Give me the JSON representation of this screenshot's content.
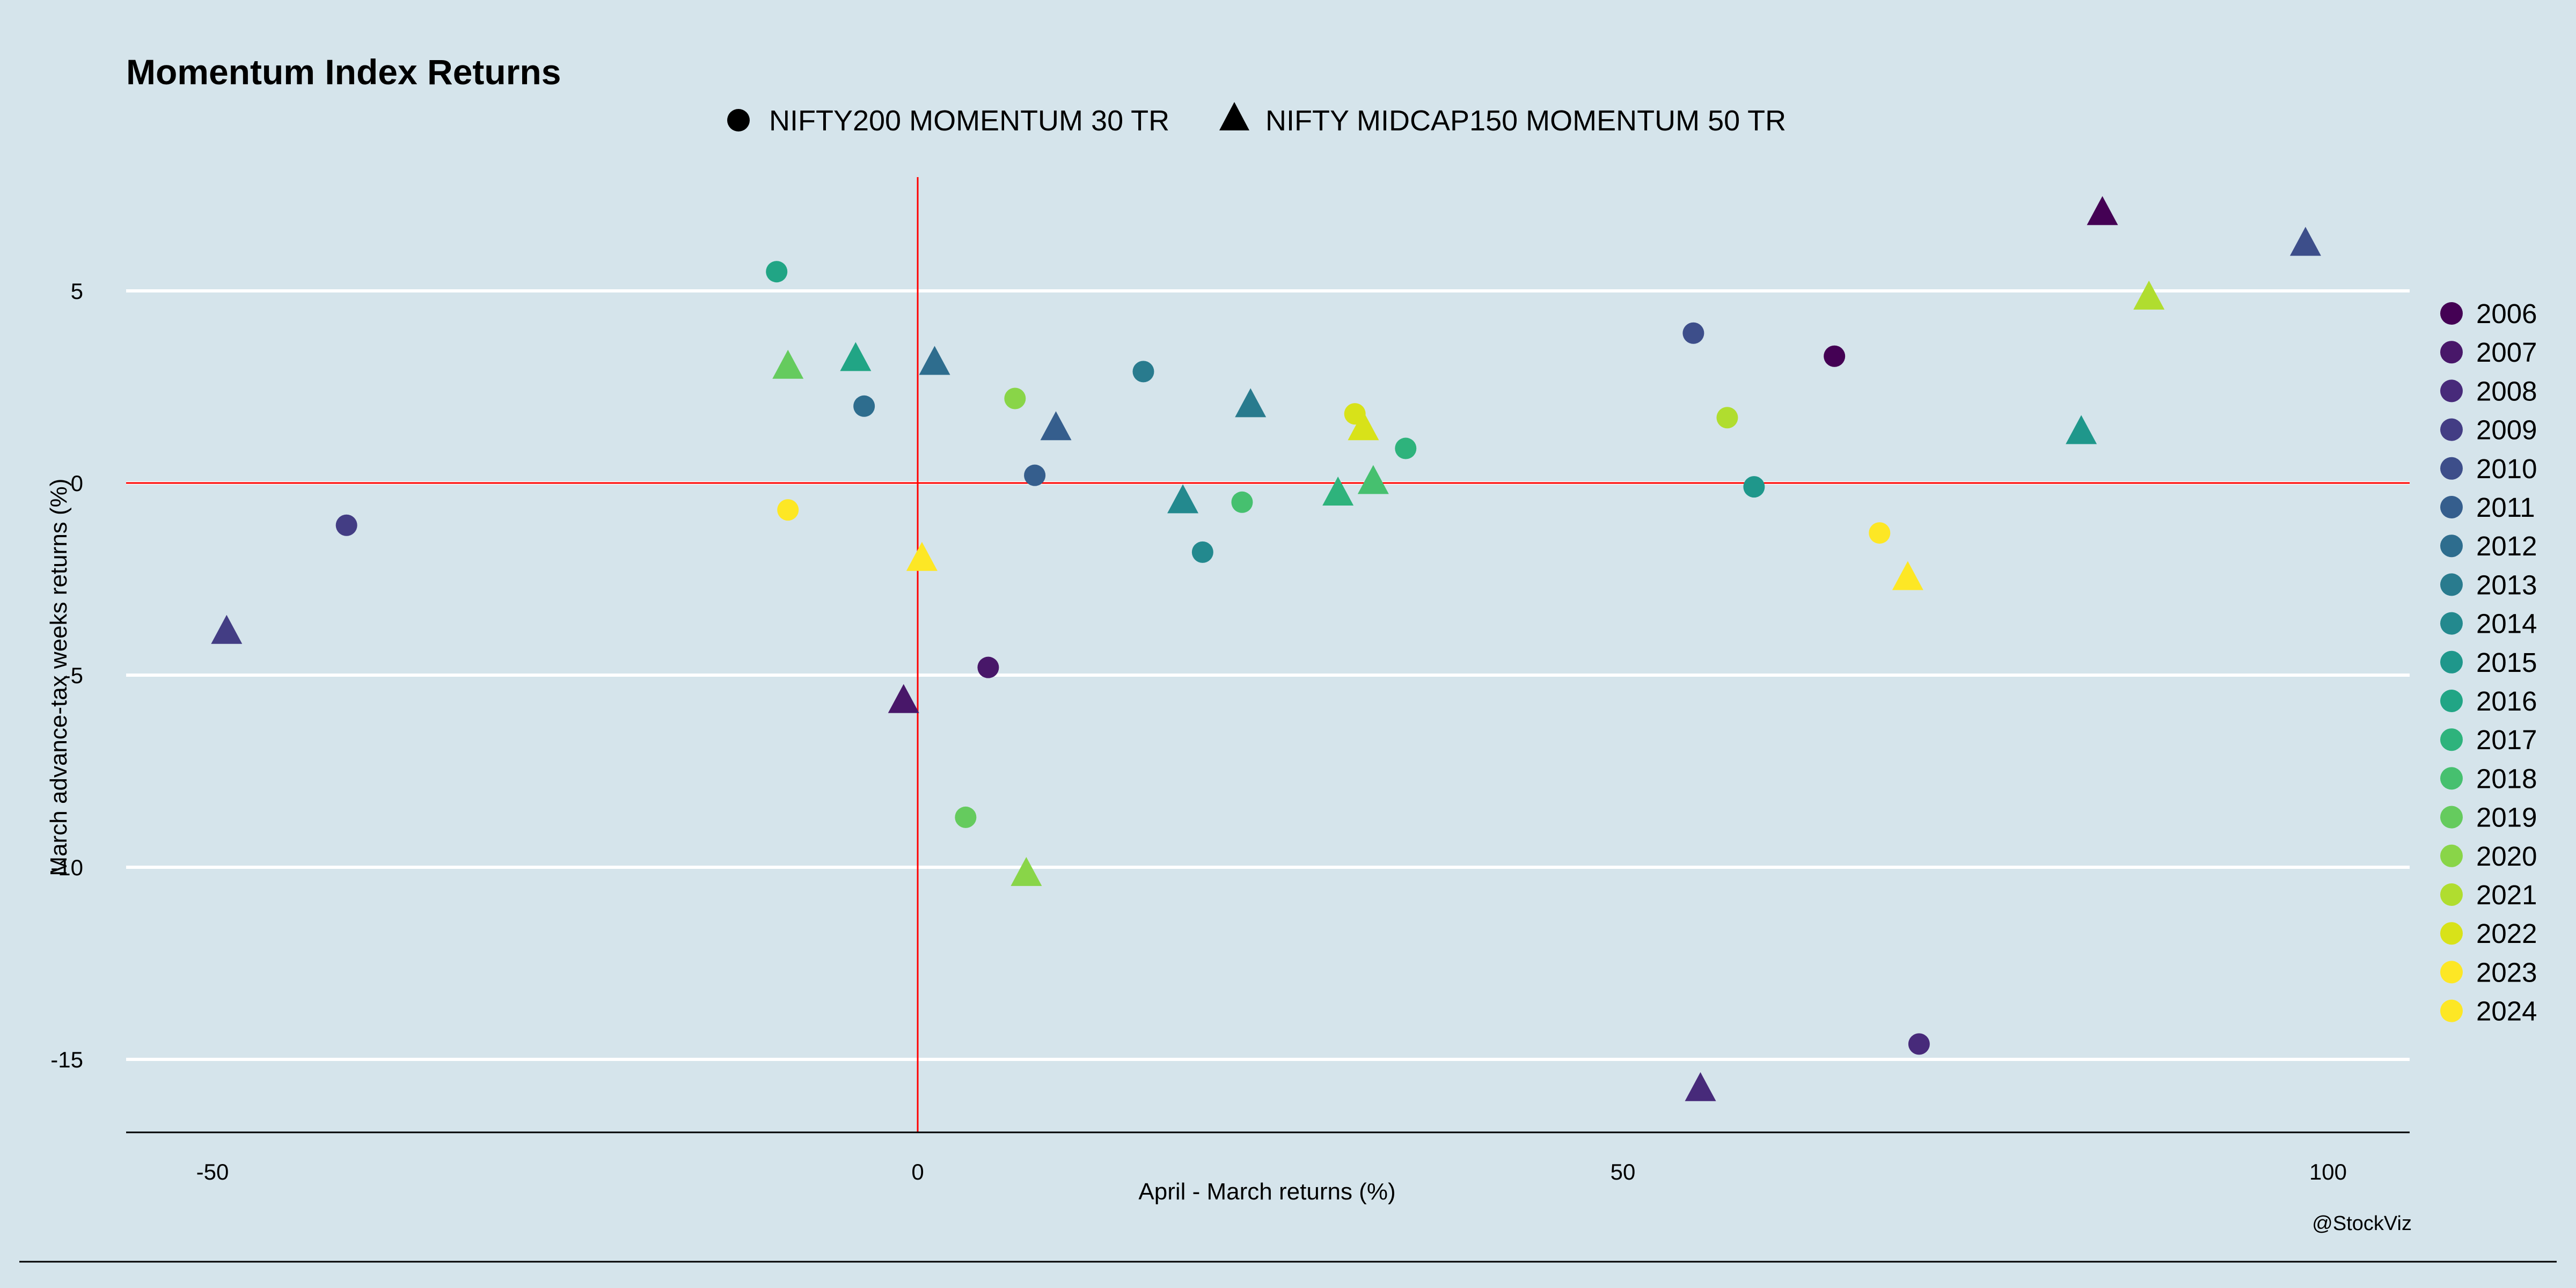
{
  "chart_data": {
    "type": "scatter",
    "title": "Momentum Index Returns",
    "xlabel": "April - March returns (%)",
    "ylabel": "March advance-tax weeks returns (%)",
    "xlim": [
      -56,
      106
    ],
    "ylim": [
      -17,
      8
    ],
    "xticks": [
      -50,
      0,
      50,
      100
    ],
    "yticks": [
      -15,
      -10,
      -5,
      0,
      5
    ],
    "grid": "horizontal",
    "reference_lines": {
      "x": 0,
      "y": 0,
      "color": "#ff0000"
    },
    "shape_legend_position": "top",
    "color_legend_position": "right",
    "caption": "@StockViz",
    "shape_series": [
      {
        "name": "NIFTY200 MOMENTUM 30 TR",
        "shape": "circle"
      },
      {
        "name": "NIFTY MIDCAP150 MOMENTUM 50 TR",
        "shape": "triangle"
      }
    ],
    "years": [
      {
        "year": "2006",
        "color": "#440154"
      },
      {
        "year": "2007",
        "color": "#481769"
      },
      {
        "year": "2008",
        "color": "#472a7a"
      },
      {
        "year": "2009",
        "color": "#433d84"
      },
      {
        "year": "2010",
        "color": "#3d4e8a"
      },
      {
        "year": "2011",
        "color": "#355e8d"
      },
      {
        "year": "2012",
        "color": "#2e6d8e"
      },
      {
        "year": "2013",
        "color": "#297b8e"
      },
      {
        "year": "2014",
        "color": "#23898e"
      },
      {
        "year": "2015",
        "color": "#1f978b"
      },
      {
        "year": "2016",
        "color": "#21a585"
      },
      {
        "year": "2017",
        "color": "#2eb37c"
      },
      {
        "year": "2018",
        "color": "#46c06f"
      },
      {
        "year": "2019",
        "color": "#65cb5e"
      },
      {
        "year": "2020",
        "color": "#89d548"
      },
      {
        "year": "2021",
        "color": "#b0dd2f"
      },
      {
        "year": "2022",
        "color": "#d8e219"
      },
      {
        "year": "2023",
        "color": "#fde725"
      },
      {
        "year": "2024",
        "color": "#fde725"
      }
    ],
    "points": [
      {
        "series": "NIFTY200 MOMENTUM 30 TR",
        "year": "2006",
        "x": 65,
        "y": 3.3
      },
      {
        "series": "NIFTY200 MOMENTUM 30 TR",
        "year": "2007",
        "x": 5,
        "y": -4.8
      },
      {
        "series": "NIFTY200 MOMENTUM 30 TR",
        "year": "2008",
        "x": 71,
        "y": -14.6
      },
      {
        "series": "NIFTY200 MOMENTUM 30 TR",
        "year": "2009",
        "x": -40.5,
        "y": -1.1
      },
      {
        "series": "NIFTY200 MOMENTUM 30 TR",
        "year": "2010",
        "x": 55,
        "y": 3.9
      },
      {
        "series": "NIFTY200 MOMENTUM 30 TR",
        "year": "2011",
        "x": 8.3,
        "y": 0.2
      },
      {
        "series": "NIFTY200 MOMENTUM 30 TR",
        "year": "2012",
        "x": -3.8,
        "y": 2.0
      },
      {
        "series": "NIFTY200 MOMENTUM 30 TR",
        "year": "2013",
        "x": 16,
        "y": 2.9
      },
      {
        "series": "NIFTY200 MOMENTUM 30 TR",
        "year": "2014",
        "x": 20.2,
        "y": -1.8
      },
      {
        "series": "NIFTY200 MOMENTUM 30 TR",
        "year": "2015",
        "x": 59.3,
        "y": -0.1
      },
      {
        "series": "NIFTY200 MOMENTUM 30 TR",
        "year": "2016",
        "x": -10,
        "y": 5.5
      },
      {
        "series": "NIFTY200 MOMENTUM 30 TR",
        "year": "2017",
        "x": 34.6,
        "y": 0.9
      },
      {
        "series": "NIFTY200 MOMENTUM 30 TR",
        "year": "2018",
        "x": 23,
        "y": -0.5
      },
      {
        "series": "NIFTY200 MOMENTUM 30 TR",
        "year": "2019",
        "x": 3.4,
        "y": -8.7
      },
      {
        "series": "NIFTY200 MOMENTUM 30 TR",
        "year": "2020",
        "x": 6.9,
        "y": 2.2
      },
      {
        "series": "NIFTY200 MOMENTUM 30 TR",
        "year": "2021",
        "x": 57.4,
        "y": 1.7
      },
      {
        "series": "NIFTY200 MOMENTUM 30 TR",
        "year": "2022",
        "x": 31,
        "y": 1.8
      },
      {
        "series": "NIFTY200 MOMENTUM 30 TR",
        "year": "2023",
        "x": -9.2,
        "y": -0.7
      },
      {
        "series": "NIFTY200 MOMENTUM 30 TR",
        "year": "2024",
        "x": 68.2,
        "y": -1.3
      },
      {
        "series": "NIFTY MIDCAP150 MOMENTUM 50 TR",
        "year": "2006",
        "x": 84,
        "y": 7.0
      },
      {
        "series": "NIFTY MIDCAP150 MOMENTUM 50 TR",
        "year": "2007",
        "x": -1,
        "y": -5.7
      },
      {
        "series": "NIFTY MIDCAP150 MOMENTUM 50 TR",
        "year": "2008",
        "x": 55.5,
        "y": -15.8
      },
      {
        "series": "NIFTY MIDCAP150 MOMENTUM 50 TR",
        "year": "2009",
        "x": -49,
        "y": -3.9
      },
      {
        "series": "NIFTY MIDCAP150 MOMENTUM 50 TR",
        "year": "2010",
        "x": 98.4,
        "y": 6.2
      },
      {
        "series": "NIFTY MIDCAP150 MOMENTUM 50 TR",
        "year": "2011",
        "x": 9.8,
        "y": 1.4
      },
      {
        "series": "NIFTY MIDCAP150 MOMENTUM 50 TR",
        "year": "2012",
        "x": 1.2,
        "y": 3.1
      },
      {
        "series": "NIFTY MIDCAP150 MOMENTUM 50 TR",
        "year": "2013",
        "x": 23.6,
        "y": 2.0
      },
      {
        "series": "NIFTY MIDCAP150 MOMENTUM 50 TR",
        "year": "2014",
        "x": 18.8,
        "y": -0.5
      },
      {
        "series": "NIFTY MIDCAP150 MOMENTUM 50 TR",
        "year": "2015",
        "x": 82.5,
        "y": 1.3
      },
      {
        "series": "NIFTY MIDCAP150 MOMENTUM 50 TR",
        "year": "2016",
        "x": -4.4,
        "y": 3.2
      },
      {
        "series": "NIFTY MIDCAP150 MOMENTUM 50 TR",
        "year": "2017",
        "x": 29.8,
        "y": -0.3
      },
      {
        "series": "NIFTY MIDCAP150 MOMENTUM 50 TR",
        "year": "2018",
        "x": 32.3,
        "y": 0.0
      },
      {
        "series": "NIFTY MIDCAP150 MOMENTUM 50 TR",
        "year": "2019",
        "x": -9.2,
        "y": 3.0
      },
      {
        "series": "NIFTY MIDCAP150 MOMENTUM 50 TR",
        "year": "2020",
        "x": 7.7,
        "y": -10.2
      },
      {
        "series": "NIFTY MIDCAP150 MOMENTUM 50 TR",
        "year": "2021",
        "x": 87.3,
        "y": 4.8
      },
      {
        "series": "NIFTY MIDCAP150 MOMENTUM 50 TR",
        "year": "2022",
        "x": 31.6,
        "y": 1.4
      },
      {
        "series": "NIFTY MIDCAP150 MOMENTUM 50 TR",
        "year": "2023",
        "x": 0.3,
        "y": -2.0
      },
      {
        "series": "NIFTY MIDCAP150 MOMENTUM 50 TR",
        "year": "2024",
        "x": 70.2,
        "y": -2.5
      }
    ]
  }
}
